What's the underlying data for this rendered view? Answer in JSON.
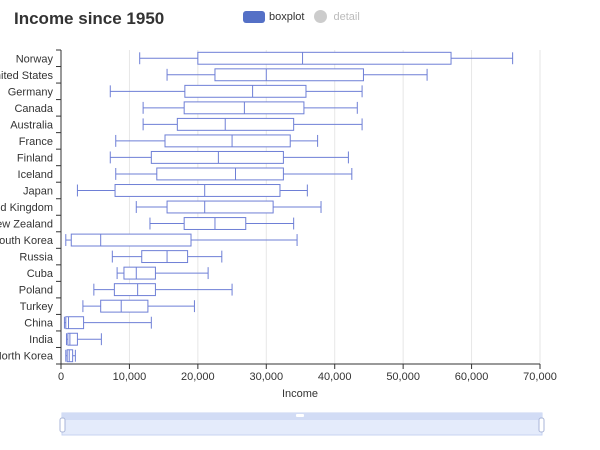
{
  "title": "Income since 1950",
  "legend": {
    "items": [
      {
        "label": "boxplot",
        "color": "#5470c6",
        "active": true
      },
      {
        "label": "detail",
        "color": "#cccccc",
        "active": false
      }
    ]
  },
  "colors": {
    "box_stroke": "#6e7fd6",
    "grid": "#e6e6e6",
    "axis": "#333333",
    "slider_fill": "#e4ebfb",
    "slider_border": "#c7d3f2"
  },
  "chart_data": {
    "type": "boxplot",
    "title": "Income since 1950",
    "orientation": "horizontal",
    "xlabel": "Income",
    "xlim": [
      0,
      70000
    ],
    "xticks": [
      0,
      10000,
      20000,
      30000,
      40000,
      50000,
      60000,
      70000
    ],
    "xtick_labels": [
      "0",
      "10,000",
      "20,000",
      "30,000",
      "40,000",
      "50,000",
      "60,000",
      "70,000"
    ],
    "grid": true,
    "series": [
      {
        "name": "boxplot",
        "items": [
          {
            "category": "Norway",
            "min": 11500,
            "q1": 20000,
            "median": 35300,
            "q3": 57000,
            "max": 66000
          },
          {
            "category": "United States",
            "min": 15500,
            "q1": 22500,
            "median": 30000,
            "q3": 44200,
            "max": 53500
          },
          {
            "category": "Germany",
            "min": 7200,
            "q1": 18100,
            "median": 28000,
            "q3": 35800,
            "max": 44000
          },
          {
            "category": "Canada",
            "min": 12000,
            "q1": 18000,
            "median": 26800,
            "q3": 35500,
            "max": 43300
          },
          {
            "category": "Australia",
            "min": 12000,
            "q1": 17000,
            "median": 24000,
            "q3": 34000,
            "max": 44000
          },
          {
            "category": "France",
            "min": 8000,
            "q1": 15200,
            "median": 25000,
            "q3": 33500,
            "max": 37500
          },
          {
            "category": "Finland",
            "min": 7200,
            "q1": 13200,
            "median": 23000,
            "q3": 32500,
            "max": 42000
          },
          {
            "category": "Iceland",
            "min": 8000,
            "q1": 14000,
            "median": 25500,
            "q3": 32500,
            "max": 42500
          },
          {
            "category": "Japan",
            "min": 2400,
            "q1": 7900,
            "median": 21000,
            "q3": 32000,
            "max": 36000
          },
          {
            "category": "United Kingdom",
            "min": 11000,
            "q1": 15500,
            "median": 21000,
            "q3": 31000,
            "max": 38000
          },
          {
            "category": "New Zealand",
            "min": 13000,
            "q1": 18000,
            "median": 22500,
            "q3": 27000,
            "max": 34000
          },
          {
            "category": "South Korea",
            "min": 700,
            "q1": 1500,
            "median": 5800,
            "q3": 19000,
            "max": 34500
          },
          {
            "category": "Russia",
            "min": 7500,
            "q1": 11800,
            "median": 15500,
            "q3": 18500,
            "max": 23500
          },
          {
            "category": "Cuba",
            "min": 8200,
            "q1": 9200,
            "median": 11000,
            "q3": 13800,
            "max": 21500
          },
          {
            "category": "Poland",
            "min": 4800,
            "q1": 7800,
            "median": 11200,
            "q3": 13800,
            "max": 25000
          },
          {
            "category": "Turkey",
            "min": 3200,
            "q1": 5800,
            "median": 8800,
            "q3": 12700,
            "max": 19500
          },
          {
            "category": "China",
            "min": 500,
            "q1": 700,
            "median": 1100,
            "q3": 3300,
            "max": 13200
          },
          {
            "category": "India",
            "min": 800,
            "q1": 1000,
            "median": 1300,
            "q3": 2400,
            "max": 5900
          },
          {
            "category": "North Korea",
            "min": 700,
            "q1": 900,
            "median": 1200,
            "q3": 1700,
            "max": 2100
          }
        ]
      }
    ]
  }
}
